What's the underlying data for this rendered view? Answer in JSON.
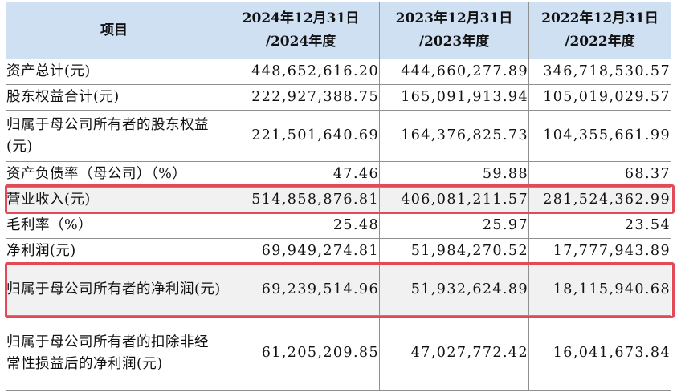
{
  "table": {
    "columns": [
      {
        "line1": "项目",
        "line2": ""
      },
      {
        "line1": "2024年12月31日",
        "line2": "/2024年度"
      },
      {
        "line1": "2023年12月31日",
        "line2": "/2023年度"
      },
      {
        "line1": "2022年12月31日",
        "line2": "/2022年度"
      }
    ],
    "rows": [
      {
        "label": "资产总计(元)",
        "v2024": "448,652,616.20",
        "v2023": "444,660,277.89",
        "v2022": "346,718,530.57"
      },
      {
        "label": "股东权益合计(元)",
        "v2024": "222,927,388.75",
        "v2023": "165,091,913.94",
        "v2022": "105,019,029.57"
      },
      {
        "label": "归属于母公司所有者的股东权益(元)",
        "v2024": "221,501,640.69",
        "v2023": "164,376,825.73",
        "v2022": "104,355,661.99"
      },
      {
        "label": "资产负债率（母公司）（%）",
        "v2024": "47.46",
        "v2023": "59.88",
        "v2022": "68.37"
      },
      {
        "label": "营业收入(元)",
        "v2024": "514,858,876.81",
        "v2023": "406,081,211.57",
        "v2022": "281,524,362.99"
      },
      {
        "label": "毛利率（%）",
        "v2024": "25.48",
        "v2023": "25.97",
        "v2022": "23.54"
      },
      {
        "label": "净利润(元)",
        "v2024": "69,949,274.81",
        "v2023": "51,984,270.52",
        "v2022": "17,777,943.89"
      },
      {
        "label": "归属于母公司所有者的净利润(元)",
        "v2024": "69,239,514.96",
        "v2023": "51,932,624.89",
        "v2022": "18,115,940.68"
      },
      {
        "label": "归属于母公司所有者的扣除非经常性损益后的净利润(元)",
        "v2024": "61,205,209.85",
        "v2023": "47,027,772.42",
        "v2022": "16,041,673.84"
      }
    ]
  },
  "highlight_color": "#e24a57",
  "header_color": "#cfe0f3"
}
